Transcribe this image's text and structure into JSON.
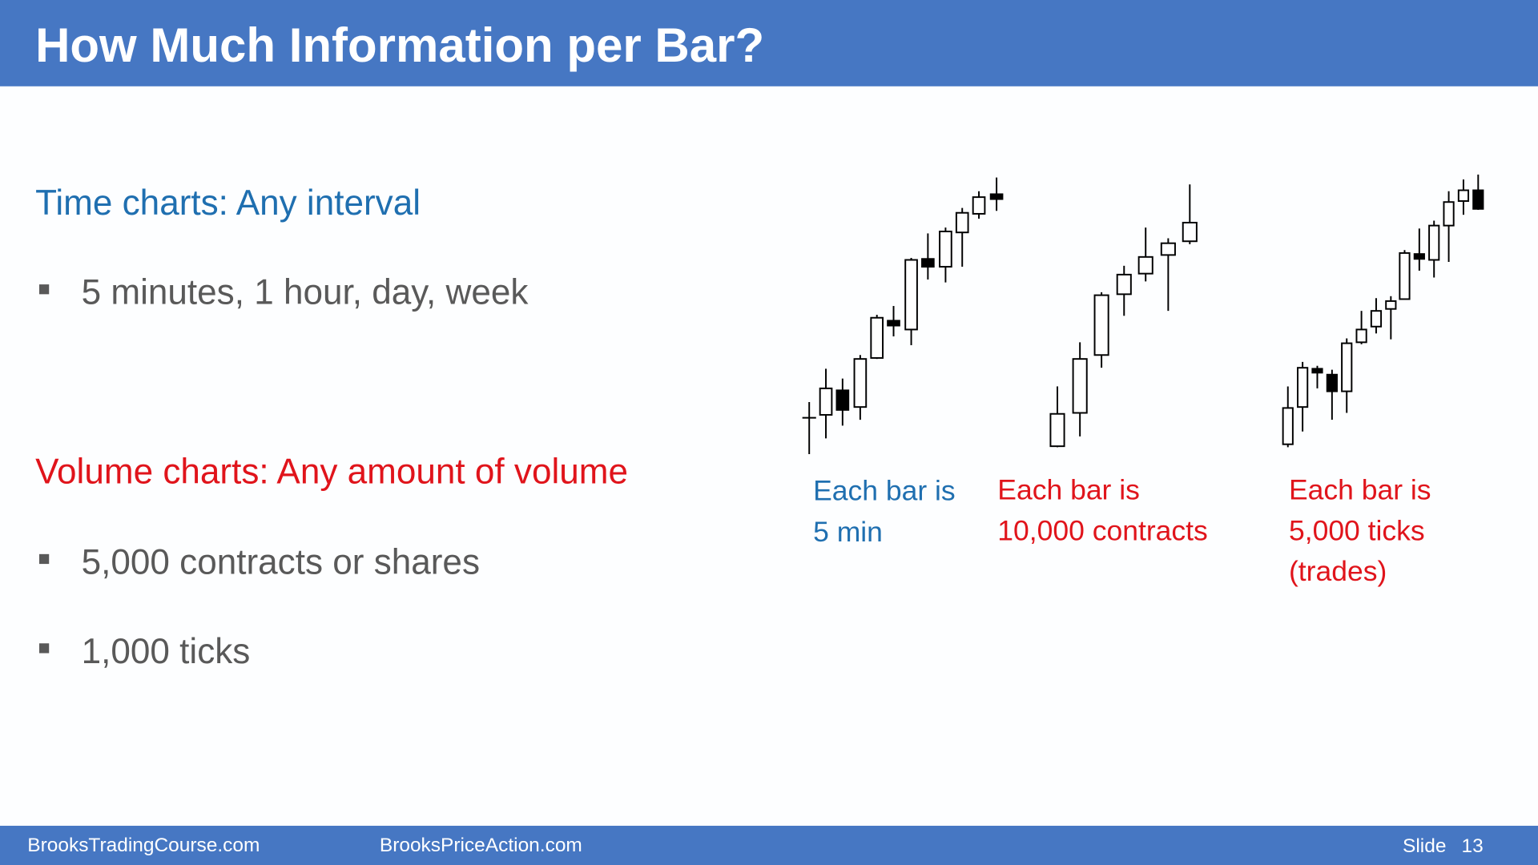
{
  "header": {
    "title": "How Much Information per Bar?"
  },
  "sections": [
    {
      "heading": "Time charts: Any interval",
      "bullets": [
        "5 minutes, 1 hour, day, week"
      ]
    },
    {
      "heading": "Volume charts: Any amount of volume",
      "bullets": [
        "5,000 contracts or shares",
        "1,000 ticks"
      ]
    }
  ],
  "captions": [
    [
      "Each bar is",
      "5 min"
    ],
    [
      "Each bar is",
      "10,000 contracts"
    ],
    [
      "Each bar is",
      "5,000 ticks",
      "(trades)"
    ]
  ],
  "footer": {
    "left": "BrooksTradingCourse.com",
    "middle": "BrooksPriceAction.com",
    "slide_label": "Slide",
    "slide_number": "13"
  }
}
